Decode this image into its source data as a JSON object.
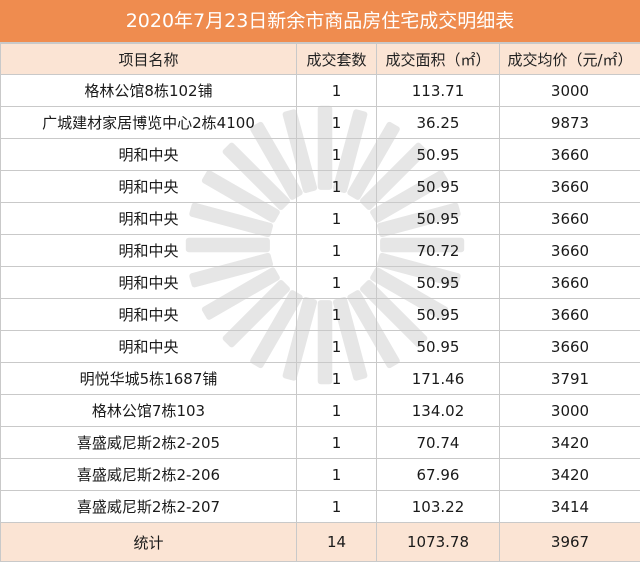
{
  "title": "2020年7月23日新余市商品房住宅成交明细表",
  "columns": [
    "项目名称",
    "成交套数",
    "成交面积（㎡）",
    "成交均价（元/㎡）"
  ],
  "rows": [
    {
      "name": "格林公馆8栋102铺",
      "units": "1",
      "area": "113.71",
      "price": "3000"
    },
    {
      "name": "广城建材家居博览中心2栋4100",
      "units": "1",
      "area": "36.25",
      "price": "9873"
    },
    {
      "name": "明和中央",
      "units": "1",
      "area": "50.95",
      "price": "3660"
    },
    {
      "name": "明和中央",
      "units": "1",
      "area": "50.95",
      "price": "3660"
    },
    {
      "name": "明和中央",
      "units": "1",
      "area": "50.95",
      "price": "3660"
    },
    {
      "name": "明和中央",
      "units": "1",
      "area": "70.72",
      "price": "3660"
    },
    {
      "name": "明和中央",
      "units": "1",
      "area": "50.95",
      "price": "3660"
    },
    {
      "name": "明和中央",
      "units": "1",
      "area": "50.95",
      "price": "3660"
    },
    {
      "name": "明和中央",
      "units": "1",
      "area": "50.95",
      "price": "3660"
    },
    {
      "name": "明悦华城5栋1687铺",
      "units": "1",
      "area": "171.46",
      "price": "3791"
    },
    {
      "name": "格林公馆7栋103",
      "units": "1",
      "area": "134.02",
      "price": "3000"
    },
    {
      "name": "喜盛威尼斯2栋2-205",
      "units": "1",
      "area": "70.74",
      "price": "3420"
    },
    {
      "name": "喜盛威尼斯2栋2-206",
      "units": "1",
      "area": "67.96",
      "price": "3420"
    },
    {
      "name": "喜盛威尼斯2栋2-207",
      "units": "1",
      "area": "103.22",
      "price": "3414"
    }
  ],
  "total": {
    "label": "统计",
    "units": "14",
    "area": "1073.78",
    "price": "3967"
  },
  "colors": {
    "title_bg": "#ef8c4f",
    "header_bg": "#fbe4d4",
    "grid": "#c9c9c9"
  }
}
